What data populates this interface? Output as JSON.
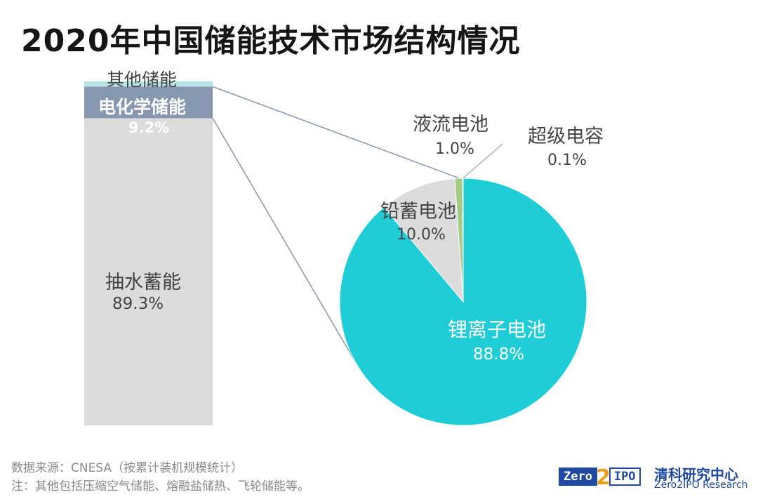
{
  "title": "2020年中国储能技术市场结构情况",
  "chart_data": [
    {
      "type": "bar",
      "stacked": true,
      "segments": [
        {
          "label": "抽水蓄能",
          "value": 89.3,
          "value_label": "89.3%",
          "color": "#dcdcdc"
        },
        {
          "label": "电化学储能",
          "value": 9.2,
          "value_label": "9.2%",
          "color": "#8797b0"
        },
        {
          "label": "其他储能",
          "value": 1.5,
          "color": "#b6e3e3"
        }
      ]
    },
    {
      "type": "pie",
      "slices": [
        {
          "label": "锂离子电池",
          "value": 88.8,
          "value_label": "88.8%",
          "color": "#1ecdd6"
        },
        {
          "label": "铅蓄电池",
          "value": 10.0,
          "value_label": "10.0%",
          "color": "#dcdcdc"
        },
        {
          "label": "液流电池",
          "value": 1.0,
          "value_label": "1.0%",
          "color": "#a2cc84"
        },
        {
          "label": "超级电容",
          "value": 0.1,
          "value_label": "0.1%",
          "color": "#ffffff"
        }
      ]
    }
  ],
  "footer": {
    "source": "数据来源：CNESA（按累计装机规模统计）",
    "note": "注：其他包括压缩空气储能、熔融盐储热、飞轮储能等。"
  },
  "brand": {
    "logo_left": "Zero",
    "logo_mid": "2",
    "logo_right": "IPO",
    "name_cn": "清科研究中心",
    "name_en": "Zero2IPO Research"
  }
}
